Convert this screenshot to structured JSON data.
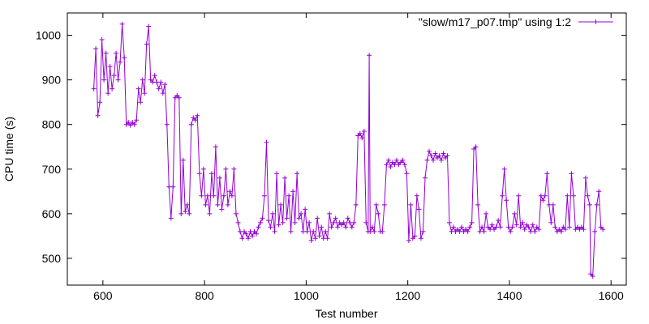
{
  "chart_data": {
    "type": "line",
    "xlabel": "Test number",
    "ylabel": "CPU time (s)",
    "xlim": [
      530,
      1630
    ],
    "ylim": [
      440,
      1050
    ],
    "xticks": [
      600,
      800,
      1000,
      1200,
      1400,
      1600
    ],
    "yticks": [
      500,
      600,
      700,
      800,
      900,
      1000
    ],
    "grid": false,
    "legend_position": "top-right",
    "series": [
      {
        "name": "\"slow/m17_p07.tmp\" using 1:2",
        "color": "#9400d3",
        "marker": "plus",
        "points": [
          [
            582,
            880
          ],
          [
            586,
            970
          ],
          [
            590,
            820
          ],
          [
            594,
            850
          ],
          [
            598,
            990
          ],
          [
            602,
            900
          ],
          [
            606,
            960
          ],
          [
            610,
            870
          ],
          [
            614,
            930
          ],
          [
            618,
            880
          ],
          [
            622,
            910
          ],
          [
            626,
            960
          ],
          [
            630,
            900
          ],
          [
            634,
            940
          ],
          [
            638,
            1025
          ],
          [
            642,
            950
          ],
          [
            646,
            800
          ],
          [
            650,
            805
          ],
          [
            654,
            798
          ],
          [
            658,
            805
          ],
          [
            662,
            800
          ],
          [
            666,
            810
          ],
          [
            670,
            880
          ],
          [
            674,
            850
          ],
          [
            678,
            900
          ],
          [
            682,
            870
          ],
          [
            686,
            980
          ],
          [
            690,
            1020
          ],
          [
            694,
            900
          ],
          [
            698,
            895
          ],
          [
            702,
            910
          ],
          [
            706,
            895
          ],
          [
            710,
            880
          ],
          [
            714,
            895
          ],
          [
            718,
            870
          ],
          [
            722,
            890
          ],
          [
            726,
            800
          ],
          [
            730,
            660
          ],
          [
            734,
            590
          ],
          [
            738,
            660
          ],
          [
            742,
            860
          ],
          [
            746,
            865
          ],
          [
            750,
            860
          ],
          [
            754,
            600
          ],
          [
            758,
            720
          ],
          [
            762,
            605
          ],
          [
            766,
            620
          ],
          [
            770,
            600
          ],
          [
            774,
            800
          ],
          [
            778,
            815
          ],
          [
            782,
            810
          ],
          [
            786,
            820
          ],
          [
            790,
            690
          ],
          [
            794,
            640
          ],
          [
            798,
            700
          ],
          [
            802,
            620
          ],
          [
            806,
            640
          ],
          [
            810,
            600
          ],
          [
            814,
            690
          ],
          [
            818,
            640
          ],
          [
            822,
            750
          ],
          [
            826,
            620
          ],
          [
            830,
            680
          ],
          [
            834,
            610
          ],
          [
            838,
            640
          ],
          [
            842,
            700
          ],
          [
            846,
            620
          ],
          [
            850,
            650
          ],
          [
            854,
            640
          ],
          [
            858,
            700
          ],
          [
            862,
            600
          ],
          [
            866,
            580
          ],
          [
            870,
            560
          ],
          [
            874,
            545
          ],
          [
            878,
            560
          ],
          [
            882,
            555
          ],
          [
            886,
            545
          ],
          [
            890,
            560
          ],
          [
            894,
            550
          ],
          [
            898,
            560
          ],
          [
            902,
            555
          ],
          [
            906,
            570
          ],
          [
            910,
            580
          ],
          [
            914,
            590
          ],
          [
            918,
            640
          ],
          [
            922,
            760
          ],
          [
            926,
            585
          ],
          [
            930,
            570
          ],
          [
            934,
            600
          ],
          [
            938,
            560
          ],
          [
            942,
            690
          ],
          [
            946,
            575
          ],
          [
            950,
            620
          ],
          [
            954,
            580
          ],
          [
            958,
            680
          ],
          [
            962,
            590
          ],
          [
            966,
            640
          ],
          [
            970,
            560
          ],
          [
            974,
            650
          ],
          [
            978,
            580
          ],
          [
            982,
            690
          ],
          [
            986,
            590
          ],
          [
            990,
            600
          ],
          [
            994,
            560
          ],
          [
            998,
            610
          ],
          [
            1002,
            560
          ],
          [
            1006,
            580
          ],
          [
            1010,
            540
          ],
          [
            1014,
            560
          ],
          [
            1018,
            545
          ],
          [
            1022,
            590
          ],
          [
            1026,
            550
          ],
          [
            1030,
            570
          ],
          [
            1034,
            545
          ],
          [
            1038,
            560
          ],
          [
            1042,
            545
          ],
          [
            1046,
            600
          ],
          [
            1050,
            570
          ],
          [
            1054,
            580
          ],
          [
            1058,
            590
          ],
          [
            1062,
            570
          ],
          [
            1066,
            580
          ],
          [
            1070,
            575
          ],
          [
            1074,
            580
          ],
          [
            1078,
            570
          ],
          [
            1082,
            590
          ],
          [
            1086,
            580
          ],
          [
            1090,
            570
          ],
          [
            1094,
            580
          ],
          [
            1098,
            620
          ],
          [
            1102,
            775
          ],
          [
            1106,
            780
          ],
          [
            1110,
            770
          ],
          [
            1114,
            785
          ],
          [
            1118,
            580
          ],
          [
            1122,
            560
          ],
          [
            1124,
            955
          ],
          [
            1126,
            560
          ],
          [
            1130,
            570
          ],
          [
            1134,
            560
          ],
          [
            1138,
            620
          ],
          [
            1142,
            600
          ],
          [
            1146,
            560
          ],
          [
            1150,
            560
          ],
          [
            1154,
            620
          ],
          [
            1158,
            710
          ],
          [
            1162,
            720
          ],
          [
            1166,
            705
          ],
          [
            1170,
            715
          ],
          [
            1174,
            710
          ],
          [
            1178,
            720
          ],
          [
            1182,
            710
          ],
          [
            1186,
            715
          ],
          [
            1190,
            720
          ],
          [
            1194,
            710
          ],
          [
            1198,
            690
          ],
          [
            1202,
            540
          ],
          [
            1206,
            620
          ],
          [
            1210,
            545
          ],
          [
            1214,
            550
          ],
          [
            1218,
            640
          ],
          [
            1222,
            610
          ],
          [
            1226,
            545
          ],
          [
            1230,
            560
          ],
          [
            1234,
            680
          ],
          [
            1238,
            720
          ],
          [
            1242,
            740
          ],
          [
            1246,
            730
          ],
          [
            1250,
            720
          ],
          [
            1254,
            735
          ],
          [
            1258,
            725
          ],
          [
            1262,
            730
          ],
          [
            1266,
            720
          ],
          [
            1270,
            735
          ],
          [
            1274,
            725
          ],
          [
            1278,
            730
          ],
          [
            1282,
            580
          ],
          [
            1286,
            560
          ],
          [
            1290,
            570
          ],
          [
            1294,
            560
          ],
          [
            1298,
            565
          ],
          [
            1302,
            560
          ],
          [
            1306,
            570
          ],
          [
            1310,
            560
          ],
          [
            1314,
            565
          ],
          [
            1318,
            560
          ],
          [
            1322,
            570
          ],
          [
            1326,
            580
          ],
          [
            1330,
            745
          ],
          [
            1334,
            750
          ],
          [
            1338,
            620
          ],
          [
            1342,
            560
          ],
          [
            1346,
            570
          ],
          [
            1350,
            560
          ],
          [
            1354,
            600
          ],
          [
            1358,
            570
          ],
          [
            1362,
            565
          ],
          [
            1366,
            575
          ],
          [
            1370,
            565
          ],
          [
            1374,
            570
          ],
          [
            1378,
            585
          ],
          [
            1382,
            570
          ],
          [
            1386,
            640
          ],
          [
            1390,
            700
          ],
          [
            1394,
            630
          ],
          [
            1398,
            570
          ],
          [
            1402,
            560
          ],
          [
            1406,
            570
          ],
          [
            1410,
            600
          ],
          [
            1414,
            575
          ],
          [
            1418,
            640
          ],
          [
            1422,
            570
          ],
          [
            1426,
            580
          ],
          [
            1430,
            565
          ],
          [
            1434,
            575
          ],
          [
            1438,
            570
          ],
          [
            1442,
            560
          ],
          [
            1446,
            575
          ],
          [
            1450,
            560
          ],
          [
            1454,
            570
          ],
          [
            1458,
            565
          ],
          [
            1462,
            640
          ],
          [
            1466,
            630
          ],
          [
            1470,
            640
          ],
          [
            1474,
            690
          ],
          [
            1478,
            620
          ],
          [
            1482,
            580
          ],
          [
            1486,
            620
          ],
          [
            1490,
            570
          ],
          [
            1494,
            560
          ],
          [
            1498,
            565
          ],
          [
            1502,
            560
          ],
          [
            1506,
            570
          ],
          [
            1510,
            565
          ],
          [
            1514,
            640
          ],
          [
            1518,
            570
          ],
          [
            1522,
            690
          ],
          [
            1526,
            640
          ],
          [
            1530,
            565
          ],
          [
            1534,
            570
          ],
          [
            1538,
            565
          ],
          [
            1542,
            570
          ],
          [
            1546,
            565
          ],
          [
            1550,
            680
          ],
          [
            1554,
            640
          ],
          [
            1558,
            620
          ],
          [
            1560,
            465
          ],
          [
            1564,
            460
          ],
          [
            1568,
            560
          ],
          [
            1572,
            620
          ],
          [
            1576,
            650
          ],
          [
            1580,
            570
          ],
          [
            1584,
            565
          ]
        ]
      }
    ]
  }
}
